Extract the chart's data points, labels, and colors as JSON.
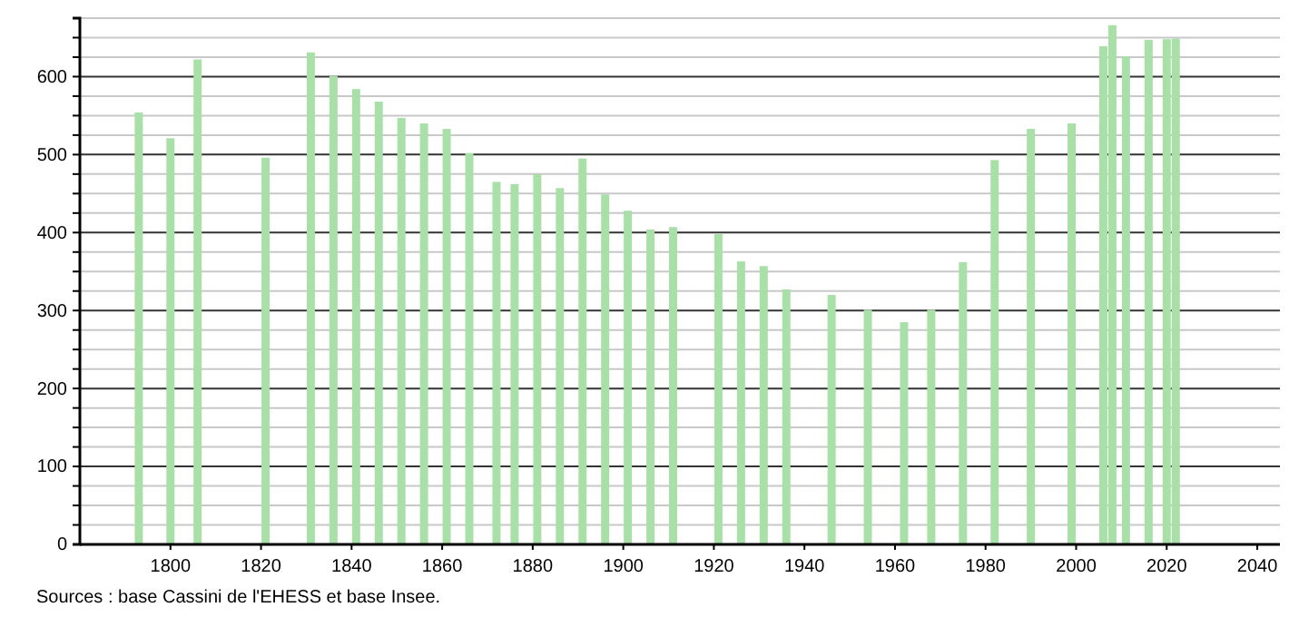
{
  "chart_data": {
    "type": "bar",
    "x": [
      1793,
      1800,
      1806,
      1821,
      1831,
      1836,
      1841,
      1846,
      1851,
      1856,
      1861,
      1866,
      1872,
      1876,
      1881,
      1886,
      1891,
      1896,
      1901,
      1906,
      1911,
      1921,
      1926,
      1931,
      1936,
      1946,
      1954,
      1962,
      1968,
      1975,
      1982,
      1990,
      1999,
      2006,
      2008,
      2011,
      2016,
      2020,
      2022
    ],
    "values": [
      554,
      521,
      622,
      496,
      631,
      601,
      584,
      568,
      547,
      540,
      533,
      502,
      465,
      462,
      475,
      457,
      495,
      449,
      428,
      404,
      407,
      398,
      363,
      357,
      327,
      320,
      301,
      285,
      301,
      362,
      493,
      533,
      540,
      639,
      666,
      626,
      647,
      648,
      649
    ],
    "color": "#a8e0a8",
    "xlim": [
      1780,
      2045
    ],
    "xticks": [
      1800,
      1820,
      1840,
      1860,
      1880,
      1900,
      1920,
      1940,
      1960,
      1980,
      2000,
      2020,
      2040
    ],
    "ylim": [
      0,
      675
    ],
    "yticks": [
      0,
      {
        "value": 25,
        "label": null
      },
      {
        "value": 50,
        "label": null
      },
      {
        "value": 75,
        "label": null
      },
      100,
      {
        "value": 125,
        "label": null
      },
      {
        "value": 150,
        "label": null
      },
      {
        "value": 175,
        "label": null
      },
      200,
      {
        "value": 225,
        "label": null
      },
      {
        "value": 250,
        "label": null
      },
      {
        "value": 275,
        "label": null
      },
      300,
      {
        "value": 325,
        "label": null
      },
      {
        "value": 350,
        "label": null
      },
      {
        "value": 375,
        "label": null
      },
      400,
      {
        "value": 425,
        "label": null
      },
      {
        "value": 450,
        "label": null
      },
      {
        "value": 475,
        "label": null
      },
      500,
      {
        "value": 525,
        "label": null
      },
      {
        "value": 550,
        "label": null
      },
      {
        "value": 575,
        "label": null
      },
      600,
      {
        "value": 625,
        "label": null
      },
      {
        "value": 650,
        "label": null
      },
      {
        "value": 675,
        "label": null
      }
    ],
    "grid": "y",
    "annotations": [
      "Sources : base Cassini de l'EHESS et base Insee."
    ]
  }
}
